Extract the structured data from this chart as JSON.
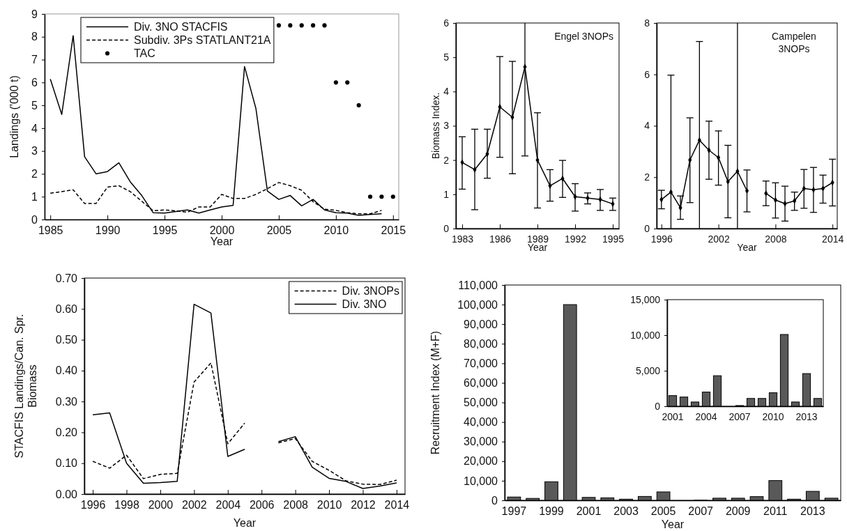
{
  "chart_data": [
    {
      "type": "line",
      "xlabel": "Year",
      "ylabel": "Landings ('000 t)",
      "x": [
        1985,
        1986,
        1987,
        1988,
        1989,
        1990,
        1991,
        1992,
        1993,
        1994,
        1995,
        1996,
        1997,
        1998,
        1999,
        2000,
        2001,
        2002,
        2003,
        2004,
        2005,
        2006,
        2007,
        2008,
        2009,
        2010,
        2011,
        2012,
        2013,
        2014
      ],
      "xlim": [
        1984.5,
        2015.5
      ],
      "xticks": [
        1985,
        1990,
        1995,
        2000,
        2005,
        2010,
        2015
      ],
      "ylim": [
        0,
        9
      ],
      "yticks": [
        0,
        1,
        2,
        3,
        4,
        5,
        6,
        7,
        8,
        9
      ],
      "legend": "top",
      "series": [
        {
          "name": "Div. 3NO STACFIS",
          "color": "#000000",
          "line_style": "solid",
          "values": [
            6.15,
            4.6,
            8.05,
            2.75,
            2.0,
            2.1,
            2.48,
            1.65,
            1.05,
            0.3,
            0.28,
            0.35,
            0.42,
            0.28,
            0.42,
            0.55,
            0.62,
            6.7,
            4.85,
            1.25,
            0.88,
            1.05,
            0.6,
            0.88,
            0.42,
            0.3,
            0.28,
            0.18,
            0.22,
            0.25
          ]
        },
        {
          "name": "Subdiv. 3Ps STATLANT21A",
          "color": "#000000",
          "line_style": "dashed",
          "values": [
            1.15,
            1.22,
            1.3,
            0.7,
            0.7,
            1.42,
            1.48,
            1.22,
            0.8,
            0.38,
            0.42,
            0.38,
            0.32,
            0.55,
            0.55,
            1.1,
            0.92,
            0.92,
            1.1,
            1.35,
            1.62,
            1.48,
            1.28,
            0.78,
            0.45,
            0.4,
            0.3,
            0.25,
            0.25,
            0.4
          ]
        },
        {
          "name": "TAC",
          "type": "scatter",
          "marker": "circle",
          "color": "#000000",
          "x": [
            2005,
            2006,
            2007,
            2008,
            2009,
            2010,
            2011,
            2012,
            2013,
            2014,
            2015
          ],
          "values": [
            8.5,
            8.5,
            8.5,
            8.5,
            8.5,
            6,
            6,
            5,
            1,
            1,
            1
          ]
        }
      ]
    },
    {
      "type": "line",
      "xlabel": "Year",
      "ylabel": "Biomass Index.",
      "annotations": [
        "Engel 3NOPs"
      ],
      "x": [
        1983,
        1984,
        1985,
        1986,
        1987,
        1988,
        1989,
        1990,
        1991,
        1992,
        1993,
        1994,
        1995
      ],
      "xlim": [
        1982.5,
        1995.5
      ],
      "xticks": [
        1983,
        1986,
        1989,
        1992,
        1995
      ],
      "ylim": [
        0,
        6
      ],
      "yticks": [
        0,
        1,
        2,
        3,
        4,
        5,
        6
      ],
      "marker": "diamond",
      "series": [
        {
          "color": "#000000",
          "values": [
            1.93,
            1.72,
            2.18,
            3.55,
            3.25,
            4.72,
            2.0,
            1.25,
            1.46,
            0.93,
            0.89,
            0.85,
            0.72
          ],
          "errors": [
            [
              1.15,
              2.68
            ],
            [
              0.55,
              2.9
            ],
            [
              1.47,
              2.9
            ],
            [
              2.08,
              5.02
            ],
            [
              1.6,
              4.88
            ],
            [
              2.12,
              6
            ],
            [
              0.6,
              3.38
            ],
            [
              0.8,
              1.72
            ],
            [
              0.91,
              1.99
            ],
            [
              0.51,
              1.31
            ],
            [
              0.72,
              1.04
            ],
            [
              0.53,
              1.14
            ],
            [
              0.53,
              0.89
            ]
          ]
        }
      ]
    },
    {
      "type": "line",
      "xlabel": "Year",
      "annotations": [
        "Campelen 3NOPs"
      ],
      "x": [
        1996,
        1997,
        1998,
        1999,
        2000,
        2001,
        2002,
        2003,
        2004,
        2005,
        2006,
        2007,
        2008,
        2009,
        2010,
        2011,
        2012,
        2013,
        2014
      ],
      "xlim": [
        1995.5,
        2014.5
      ],
      "xticks": [
        1996,
        2002,
        2008,
        2014
      ],
      "ylim": [
        0,
        8
      ],
      "yticks": [
        0,
        2,
        4,
        6,
        8
      ],
      "marker": "diamond",
      "series": [
        {
          "color": "#000000",
          "values": [
            1.13,
            1.42,
            0.81,
            2.67,
            3.44,
            3.05,
            2.76,
            1.83,
            2.23,
            1.47,
            null,
            1.37,
            1.11,
            0.97,
            1.08,
            1.56,
            1.51,
            1.56,
            1.79
          ],
          "errors": [
            [
              0.77,
              1.49
            ],
            [
              0,
              5.97
            ],
            [
              0.36,
              1.27
            ],
            [
              1.01,
              4.31
            ],
            [
              0,
              7.28
            ],
            [
              1.92,
              4.18
            ],
            [
              1.69,
              3.8
            ],
            [
              0.42,
              3.24
            ],
            [
              0,
              8
            ],
            [
              0.65,
              2.28
            ],
            null,
            [
              0.89,
              1.85
            ],
            [
              0.41,
              1.78
            ],
            [
              0.29,
              1.65
            ],
            [
              0.71,
              1.42
            ],
            [
              0.79,
              2.3
            ],
            [
              0.63,
              2.38
            ],
            [
              0.99,
              2.08
            ],
            [
              0.88,
              2.7
            ]
          ]
        }
      ]
    },
    {
      "type": "line",
      "xlabel": "Year",
      "ylabel": "STACFIS Landings/Can. Spr. Biomass",
      "x": [
        1996,
        1997,
        1998,
        1999,
        2000,
        2001,
        2002,
        2003,
        2004,
        2005,
        2006,
        2007,
        2008,
        2009,
        2010,
        2011,
        2012,
        2013,
        2014
      ],
      "xlim": [
        1995.5,
        2014.5
      ],
      "xticks": [
        1996,
        1998,
        2000,
        2002,
        2004,
        2006,
        2008,
        2010,
        2012,
        2014
      ],
      "ylim": [
        0,
        0.7
      ],
      "yticks": [
        {
          "value": 0,
          "label": "0.00"
        },
        {
          "value": 0.1,
          "label": "0.10"
        },
        {
          "value": 0.2,
          "label": "0.20"
        },
        {
          "value": 0.3,
          "label": "0.30"
        },
        {
          "value": 0.4,
          "label": "0.40"
        },
        {
          "value": 0.5,
          "label": "0.50"
        },
        {
          "value": 0.6,
          "label": "0.60"
        },
        {
          "value": 0.7,
          "label": "0.70"
        }
      ],
      "legend": "top right",
      "series": [
        {
          "name": "Div. 3NOPs",
          "color": "#000000",
          "line_style": "dashed",
          "values": [
            0.106,
            0.084,
            0.126,
            0.05,
            0.064,
            0.067,
            0.363,
            0.425,
            0.163,
            0.23,
            null,
            0.166,
            0.18,
            0.106,
            0.077,
            0.043,
            0.032,
            0.031,
            0.045
          ]
        },
        {
          "name": "Div. 3NO",
          "color": "#000000",
          "line_style": "solid",
          "values": [
            0.257,
            0.263,
            0.1,
            0.035,
            0.037,
            0.041,
            0.615,
            0.587,
            0.122,
            0.145,
            null,
            0.17,
            0.186,
            0.087,
            0.051,
            0.041,
            0.018,
            0.026,
            0.036
          ]
        }
      ]
    },
    {
      "type": "bar",
      "xlabel": "Year",
      "ylabel": "Recruitment Index (M+F)",
      "categories": [
        "1997",
        null,
        "1999",
        null,
        "2001",
        null,
        "2003",
        null,
        "2005",
        null,
        "2007",
        null,
        "2009",
        null,
        "2011",
        null,
        "2013",
        null
      ],
      "ylim": [
        0,
        110000
      ],
      "yticks": [
        {
          "value": 0,
          "label": "0"
        },
        {
          "value": 10000,
          "label": "10,000"
        },
        {
          "value": 20000,
          "label": "20,000"
        },
        {
          "value": 30000,
          "label": "30,000"
        },
        {
          "value": 40000,
          "label": "40,000"
        },
        {
          "value": 50000,
          "label": "50,000"
        },
        {
          "value": 60000,
          "label": "60,000"
        },
        {
          "value": 70000,
          "label": "70,000"
        },
        {
          "value": 80000,
          "label": "80,000"
        },
        {
          "value": 90000,
          "label": "90,000"
        },
        {
          "value": 100000,
          "label": "100,000"
        },
        {
          "value": 110000,
          "label": "110,000"
        }
      ],
      "color": "#595959",
      "values": [
        1700,
        1000,
        9500,
        100000,
        1500,
        1300,
        600,
        2000,
        4300,
        null,
        100,
        1100,
        1100,
        1900,
        10100,
        600,
        4600,
        1100
      ]
    },
    {
      "type": "bar",
      "categories": [
        "2001",
        null,
        null,
        "2004",
        null,
        null,
        "2007",
        null,
        null,
        "2010",
        null,
        null,
        "2013",
        null
      ],
      "ylim": [
        0,
        15000
      ],
      "yticks": [
        {
          "value": 0,
          "label": "0"
        },
        {
          "value": 5000,
          "label": "5,000"
        },
        {
          "value": 10000,
          "label": "10,000"
        },
        {
          "value": 15000,
          "label": "15,000"
        }
      ],
      "color": "#595959",
      "values": [
        1500,
        1300,
        600,
        2000,
        4300,
        null,
        100,
        1100,
        1100,
        1900,
        10100,
        600,
        4600,
        1100
      ]
    }
  ]
}
